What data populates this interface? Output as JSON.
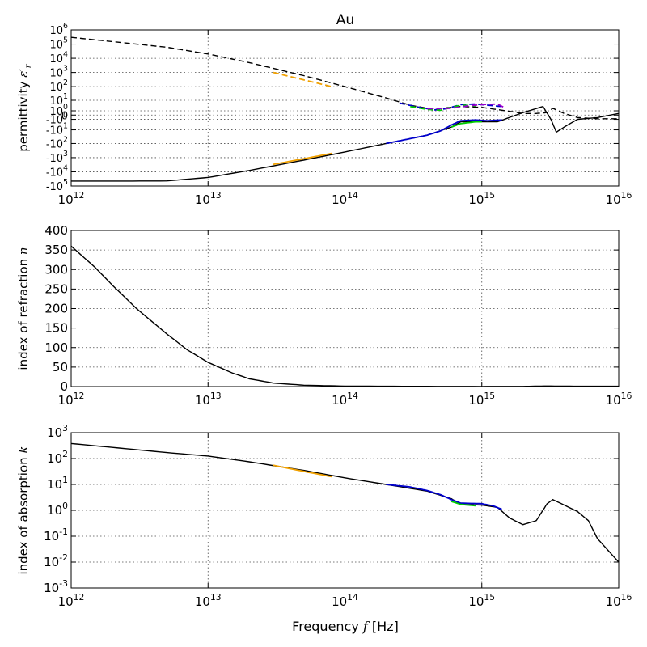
{
  "title": "Au",
  "xlabel": "Frequency $f$ [Hz]",
  "chart_data": [
    {
      "type": "line",
      "title": "Au",
      "ylabel": "permittivity $\\epsilon_r'$",
      "xscale": "log",
      "yscale": "symlog",
      "xlim": [
        1000000000000.0,
        1e+16
      ],
      "ylim": [
        -100000.0,
        1000000.0
      ],
      "grid": true,
      "xtick_labels": [
        "10^12",
        "10^13",
        "10^14",
        "10^15",
        "10^16"
      ],
      "ytick_labels": [
        "10^6",
        "10^5",
        "10^4",
        "10^3",
        "10^2",
        "10^1",
        "10^0",
        "0",
        "-10^0",
        "-10^1",
        "-10^2",
        "-10^3",
        "-10^4",
        "-10^5"
      ],
      "series": [
        {
          "style": "dashed",
          "color": "#000000",
          "x": [
            1000000000000.0,
            2000000000000.0,
            5000000000000.0,
            10000000000000.0,
            20000000000000.0,
            50000000000000.0,
            100000000000000.0,
            200000000000000.0,
            300000000000000.0,
            400000000000000.0,
            500000000000000.0,
            700000000000000.0,
            1000000000000000.0,
            1500000000000000.0,
            2000000000000000.0,
            2500000000000000.0,
            3000000000000000.0,
            3300000000000000.0,
            4000000000000000.0,
            5000000000000000.0,
            7000000000000000.0,
            1e+16
          ],
          "y": [
            300000,
            150000,
            60000,
            20000,
            5000,
            600,
            100,
            15,
            4,
            2,
            2,
            3,
            2.5,
            1,
            0.3,
            0.3,
            0.5,
            2,
            0.3,
            -0.5,
            -0.8,
            -0.8
          ]
        },
        {
          "style": "solid",
          "color": "#000000",
          "x": [
            1000000000000.0,
            2000000000000.0,
            5000000000000.0,
            10000000000000.0,
            20000000000000.0,
            50000000000000.0,
            100000000000000.0,
            200000000000000.0,
            400000000000000.0,
            600000000000000.0,
            700000000000000.0,
            1000000000000000.0,
            1300000000000000.0,
            2000000000000000.0,
            2800000000000000.0,
            3200000000000000.0,
            3500000000000000.0,
            4000000000000000.0,
            5000000000000000.0,
            7000000000000000.0,
            1e+16
          ],
          "y": [
            -45000,
            -45000,
            -44000,
            -25000,
            -8000,
            -1500,
            -400,
            -100,
            -25,
            -6,
            -2,
            -2,
            -2,
            0.5,
            3,
            -1,
            -15,
            -6,
            -1,
            -0.5,
            0.3
          ]
        },
        {
          "style": "dashed",
          "color": "#0000cc",
          "x": [
            250000000000000.0,
            350000000000000.0,
            450000000000000.0,
            550000000000000.0,
            700000000000000.0,
            900000000000000.0,
            1100000000000000.0,
            1400000000000000.0
          ],
          "y": [
            6,
            2.5,
            1.3,
            1.8,
            4.5,
            5,
            4,
            3
          ]
        },
        {
          "style": "dashed",
          "color": "#00cc00",
          "x": [
            300000000000000.0,
            400000000000000.0,
            500000000000000.0,
            600000000000000.0,
            700000000000000.0,
            900000000000000.0
          ],
          "y": [
            3,
            1.5,
            1.2,
            2.5,
            4,
            3.5
          ]
        },
        {
          "style": "dashed",
          "color": "#9900cc",
          "x": [
            400000000000000.0,
            600000000000000.0,
            800000000000000.0,
            1000000000000000.0,
            1300000000000000.0,
            1500000000000000.0
          ],
          "y": [
            1.8,
            2,
            3.5,
            4.5,
            5,
            2
          ]
        },
        {
          "style": "solid",
          "color": "#0000cc",
          "x": [
            200000000000000.0,
            300000000000000.0,
            400000000000000.0,
            500000000000000.0,
            600000000000000.0,
            700000000000000.0,
            900000000000000.0,
            1100000000000000.0,
            1400000000000000.0
          ],
          "y": [
            -100,
            -45,
            -25,
            -12,
            -4,
            -1.5,
            -1.2,
            -1.5,
            -1.2
          ]
        },
        {
          "style": "solid",
          "color": "#00cc00",
          "x": [
            600000000000000.0,
            700000000000000.0,
            900000000000000.0,
            1000000000000000.0
          ],
          "y": [
            -6,
            -3,
            -2,
            -2
          ]
        },
        {
          "style": "dashed",
          "color": "#f0a000",
          "x": [
            30000000000000.0,
            50000000000000.0,
            80000000000000.0
          ],
          "y": [
            1000,
            300,
            100
          ]
        },
        {
          "style": "solid",
          "color": "#f0a000",
          "x": [
            30000000000000.0,
            50000000000000.0,
            80000000000000.0
          ],
          "y": [
            -3000,
            -1200,
            -500
          ]
        }
      ]
    },
    {
      "type": "line",
      "ylabel": "index of refraction $n$",
      "xscale": "log",
      "yscale": "linear",
      "xlim": [
        1000000000000.0,
        1e+16
      ],
      "ylim": [
        0,
        400
      ],
      "grid": true,
      "xtick_labels": [
        "10^12",
        "10^13",
        "10^14",
        "10^15",
        "10^16"
      ],
      "ytick_labels": [
        "0",
        "50",
        "100",
        "150",
        "200",
        "250",
        "300",
        "350",
        "400"
      ],
      "series": [
        {
          "style": "solid",
          "color": "#000000",
          "x": [
            1000000000000.0,
            1500000000000.0,
            2000000000000.0,
            3000000000000.0,
            5000000000000.0,
            7000000000000.0,
            10000000000000.0,
            15000000000000.0,
            20000000000000.0,
            30000000000000.0,
            50000000000000.0,
            100000000000000.0,
            300000000000000.0,
            1000000000000000.0,
            2000000000000000.0,
            3000000000000000.0,
            5000000000000000.0,
            1e+16
          ],
          "y": [
            360,
            305,
            260,
            200,
            135,
            95,
            62,
            35,
            20,
            9,
            3.5,
            1.2,
            0.6,
            0.3,
            0.4,
            1.5,
            0.8,
            0.9
          ]
        }
      ]
    },
    {
      "type": "line",
      "ylabel": "index of absorption $k$",
      "xscale": "log",
      "yscale": "log",
      "xlim": [
        1000000000000.0,
        1e+16
      ],
      "ylim": [
        0.001,
        1000
      ],
      "grid": true,
      "xtick_labels": [
        "10^12",
        "10^13",
        "10^14",
        "10^15",
        "10^16"
      ],
      "ytick_labels": [
        "10^3",
        "10^2",
        "10^1",
        "10^0",
        "10^-1",
        "10^-2",
        "10^-3"
      ],
      "series": [
        {
          "style": "solid",
          "color": "#000000",
          "x": [
            1000000000000.0,
            2000000000000.0,
            5000000000000.0,
            10000000000000.0,
            20000000000000.0,
            50000000000000.0,
            100000000000000.0,
            200000000000000.0,
            400000000000000.0,
            600000000000000.0,
            700000000000000.0,
            1000000000000000.0,
            1300000000000000.0,
            1600000000000000.0,
            2000000000000000.0,
            2500000000000000.0,
            3000000000000000.0,
            3300000000000000.0,
            4000000000000000.0,
            5000000000000000.0,
            6000000000000000.0,
            7000000000000000.0,
            1e+16
          ],
          "y": [
            380,
            270,
            170,
            125,
            75,
            35,
            18,
            10,
            5.5,
            2.8,
            1.7,
            1.6,
            1.3,
            0.5,
            0.28,
            0.4,
            1.8,
            2.6,
            1.6,
            0.9,
            0.4,
            0.08,
            0.01
          ]
        },
        {
          "style": "solid",
          "color": "#0000cc",
          "x": [
            200000000000000.0,
            300000000000000.0,
            400000000000000.0,
            500000000000000.0,
            600000000000000.0,
            700000000000000.0,
            1000000000000000.0,
            1200000000000000.0,
            1400000000000000.0
          ],
          "y": [
            10,
            8,
            5.8,
            4,
            2.6,
            1.9,
            1.8,
            1.5,
            1.1
          ]
        },
        {
          "style": "solid",
          "color": "#00cc00",
          "x": [
            600000000000000.0,
            700000000000000.0,
            900000000000000.0
          ],
          "y": [
            2.2,
            1.7,
            1.5
          ]
        },
        {
          "style": "solid",
          "color": "#f0a000",
          "x": [
            30000000000000.0,
            50000000000000.0,
            80000000000000.0
          ],
          "y": [
            55,
            32,
            20
          ]
        }
      ]
    }
  ]
}
